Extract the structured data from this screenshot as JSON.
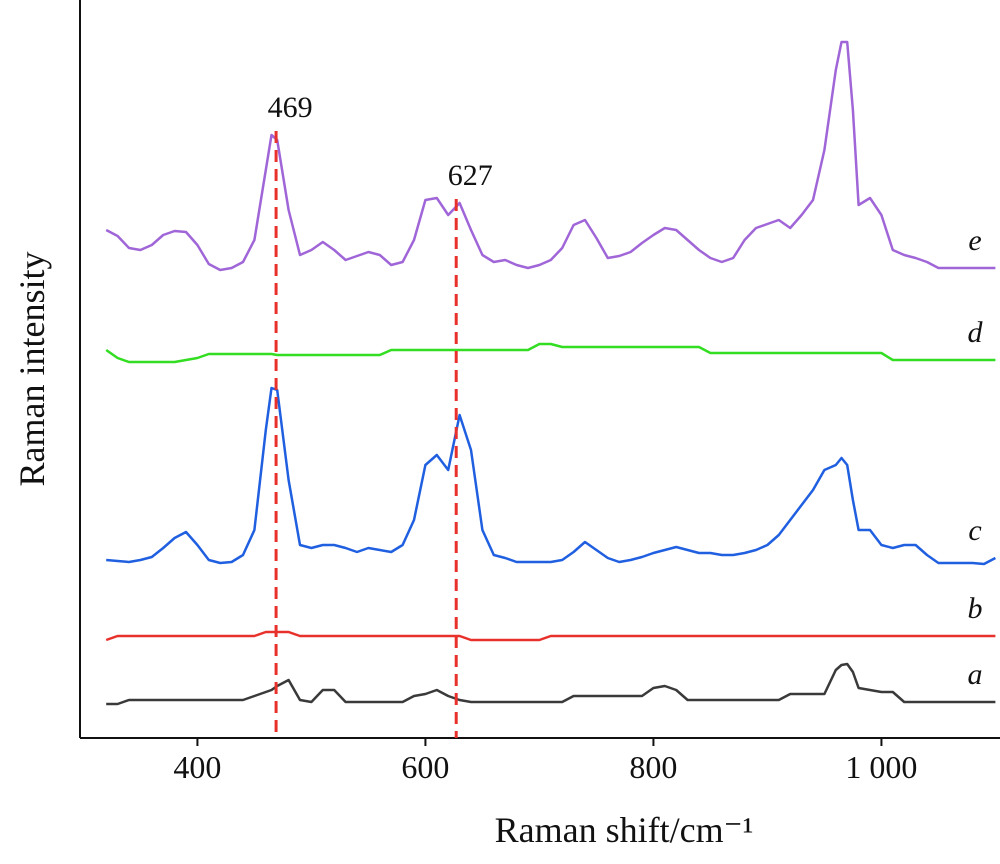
{
  "chart_data": {
    "type": "line",
    "x_label": "Raman shift/cm⁻¹",
    "y_label": "Raman intensity",
    "xlim": [
      297,
      1104
    ],
    "ylim": [
      0,
      73.8
    ],
    "xticks": [
      400,
      600,
      800,
      {
        "value": 1000,
        "label": "1 000"
      }
    ],
    "annotations": [
      {
        "x": 469,
        "color": "#e8312b"
      },
      {
        "x": 627,
        "color": "#e8312b"
      }
    ],
    "x": [
      320,
      330,
      340,
      350,
      360,
      370,
      380,
      390,
      400,
      410,
      420,
      430,
      440,
      450,
      460,
      465,
      470,
      480,
      490,
      500,
      510,
      520,
      530,
      540,
      550,
      560,
      570,
      580,
      590,
      600,
      610,
      620,
      630,
      640,
      650,
      660,
      670,
      680,
      690,
      700,
      710,
      720,
      730,
      740,
      750,
      760,
      770,
      780,
      790,
      800,
      810,
      820,
      830,
      840,
      850,
      860,
      870,
      880,
      890,
      900,
      910,
      920,
      930,
      940,
      950,
      960,
      965,
      970,
      975,
      980,
      990,
      1000,
      1010,
      1020,
      1030,
      1040,
      1050,
      1060,
      1070,
      1080,
      1090,
      1100
    ],
    "series": [
      {
        "name": "e",
        "color": "#a066d8",
        "values": [
          50.8,
          50.2,
          49.0,
          48.8,
          49.3,
          50.3,
          50.7,
          50.6,
          49.3,
          47.4,
          46.8,
          47.0,
          47.6,
          49.8,
          56.8,
          60.3,
          59.8,
          52.8,
          48.3,
          48.8,
          49.6,
          48.8,
          47.8,
          48.2,
          48.6,
          48.3,
          47.3,
          47.6,
          49.8,
          53.8,
          54.0,
          52.3,
          53.5,
          50.8,
          48.3,
          47.6,
          47.8,
          47.3,
          47.0,
          47.3,
          47.8,
          49.0,
          51.3,
          51.8,
          50.0,
          48.0,
          48.2,
          48.6,
          49.5,
          50.3,
          51.0,
          50.8,
          49.8,
          48.8,
          48.0,
          47.6,
          48.0,
          49.8,
          51.0,
          51.4,
          51.8,
          51.0,
          52.3,
          53.8,
          58.8,
          66.8,
          69.6,
          69.6,
          62.8,
          53.3,
          54.0,
          52.3,
          48.8,
          48.3,
          48.0,
          47.6,
          47.0,
          47.0,
          47.0,
          47.0,
          47.0,
          47.0
        ]
      },
      {
        "name": "d",
        "color": "#33dd22",
        "values": [
          38.8,
          38.0,
          37.6,
          37.6,
          37.6,
          37.6,
          37.6,
          37.8,
          38.0,
          38.4,
          38.4,
          38.4,
          38.4,
          38.4,
          38.4,
          38.4,
          38.3,
          38.3,
          38.3,
          38.3,
          38.3,
          38.3,
          38.3,
          38.3,
          38.3,
          38.3,
          38.8,
          38.8,
          38.8,
          38.8,
          38.8,
          38.8,
          38.8,
          38.8,
          38.8,
          38.8,
          38.8,
          38.8,
          38.8,
          39.4,
          39.4,
          39.1,
          39.1,
          39.1,
          39.1,
          39.1,
          39.1,
          39.1,
          39.1,
          39.1,
          39.1,
          39.1,
          39.1,
          39.1,
          38.5,
          38.5,
          38.5,
          38.5,
          38.5,
          38.5,
          38.5,
          38.5,
          38.5,
          38.5,
          38.5,
          38.5,
          38.5,
          38.5,
          38.5,
          38.5,
          38.5,
          38.5,
          37.8,
          37.8,
          37.8,
          37.8,
          37.8,
          37.8,
          37.8,
          37.8,
          37.8,
          37.8
        ]
      },
      {
        "name": "c",
        "color": "#1f5fe0",
        "values": [
          17.8,
          17.7,
          17.6,
          17.8,
          18.1,
          19.0,
          20.0,
          20.6,
          19.3,
          17.8,
          17.5,
          17.6,
          18.3,
          20.8,
          30.8,
          35.0,
          34.8,
          25.8,
          19.3,
          19.0,
          19.3,
          19.3,
          19.0,
          18.6,
          19.0,
          18.8,
          18.6,
          19.3,
          21.8,
          27.3,
          28.3,
          26.8,
          32.3,
          28.8,
          20.8,
          18.3,
          18.0,
          17.6,
          17.6,
          17.6,
          17.6,
          17.8,
          18.6,
          19.6,
          18.8,
          18.0,
          17.6,
          17.8,
          18.1,
          18.5,
          18.8,
          19.1,
          18.8,
          18.5,
          18.5,
          18.3,
          18.3,
          18.5,
          18.8,
          19.3,
          20.3,
          21.8,
          23.3,
          24.8,
          26.8,
          27.3,
          28.0,
          27.3,
          23.8,
          20.8,
          20.8,
          19.3,
          19.0,
          19.3,
          19.3,
          18.3,
          17.5,
          17.5,
          17.5,
          17.5,
          17.4,
          18.0
        ]
      },
      {
        "name": "b",
        "color": "#e8312b",
        "values": [
          9.8,
          10.2,
          10.2,
          10.2,
          10.2,
          10.2,
          10.2,
          10.2,
          10.2,
          10.2,
          10.2,
          10.2,
          10.2,
          10.2,
          10.6,
          10.6,
          10.6,
          10.6,
          10.2,
          10.2,
          10.2,
          10.2,
          10.2,
          10.2,
          10.2,
          10.2,
          10.2,
          10.2,
          10.2,
          10.2,
          10.2,
          10.2,
          10.2,
          9.8,
          9.8,
          9.8,
          9.8,
          9.8,
          9.8,
          9.8,
          10.2,
          10.2,
          10.2,
          10.2,
          10.2,
          10.2,
          10.2,
          10.2,
          10.2,
          10.2,
          10.2,
          10.2,
          10.2,
          10.2,
          10.2,
          10.2,
          10.2,
          10.2,
          10.2,
          10.2,
          10.2,
          10.2,
          10.2,
          10.2,
          10.2,
          10.2,
          10.2,
          10.2,
          10.2,
          10.2,
          10.2,
          10.2,
          10.2,
          10.2,
          10.2,
          10.2,
          10.2,
          10.2,
          10.2,
          10.2,
          10.2,
          10.2
        ]
      },
      {
        "name": "a",
        "color": "#3a3a3a",
        "values": [
          3.4,
          3.4,
          3.8,
          3.8,
          3.8,
          3.8,
          3.8,
          3.8,
          3.8,
          3.8,
          3.8,
          3.8,
          3.8,
          4.2,
          4.6,
          4.8,
          5.2,
          5.8,
          3.8,
          3.6,
          4.8,
          4.8,
          3.6,
          3.6,
          3.6,
          3.6,
          3.6,
          3.6,
          4.2,
          4.4,
          4.8,
          4.2,
          3.8,
          3.6,
          3.6,
          3.6,
          3.6,
          3.6,
          3.6,
          3.6,
          3.6,
          3.6,
          4.2,
          4.2,
          4.2,
          4.2,
          4.2,
          4.2,
          4.2,
          5.0,
          5.2,
          4.8,
          3.8,
          3.8,
          3.8,
          3.8,
          3.8,
          3.8,
          3.8,
          3.8,
          3.8,
          4.4,
          4.4,
          4.4,
          4.4,
          6.8,
          7.3,
          7.4,
          6.6,
          5.0,
          4.8,
          4.6,
          4.6,
          3.6,
          3.6,
          3.6,
          3.6,
          3.6,
          3.6,
          3.6,
          3.6,
          3.6
        ]
      }
    ]
  }
}
